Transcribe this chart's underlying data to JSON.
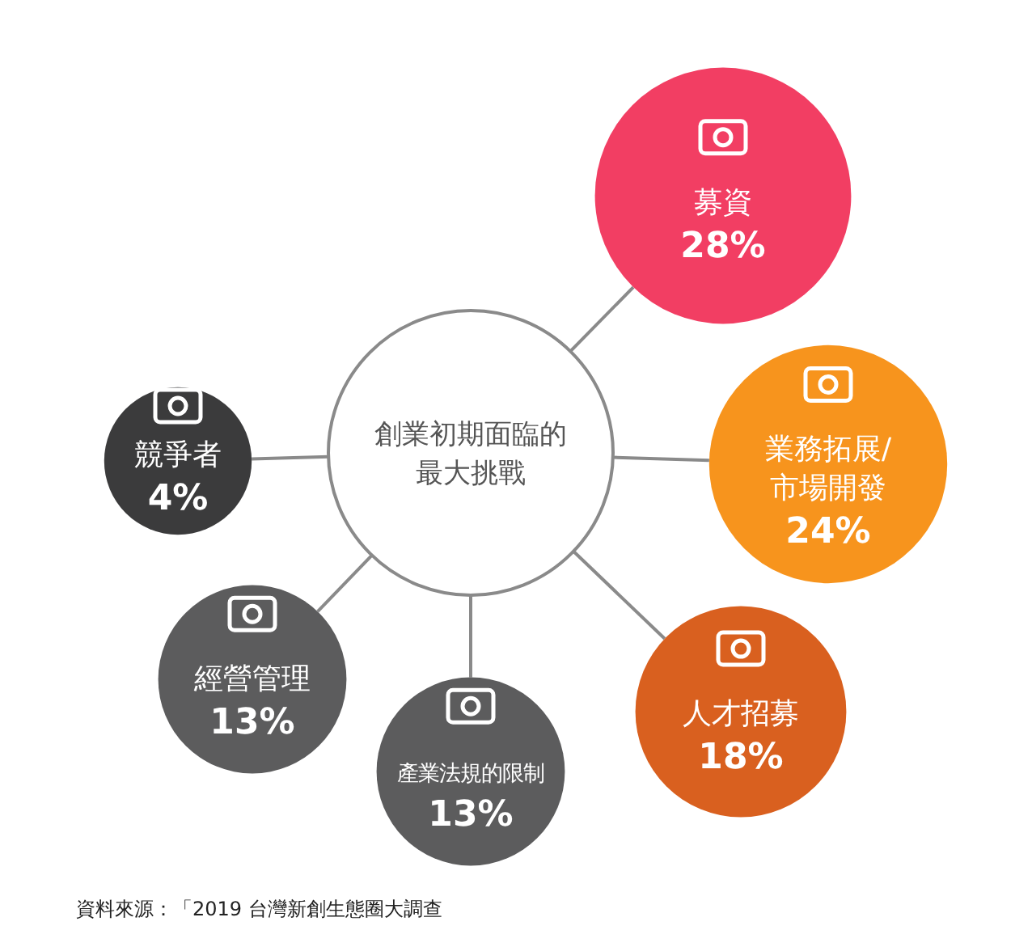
{
  "chart_data": {
    "type": "other",
    "title": "創業初期面臨的最大挑戰",
    "categories": [
      "募資",
      "業務拓展/市場開發",
      "人才招募",
      "產業法規的限制",
      "經營管理",
      "競爭者"
    ],
    "values": [
      28,
      24,
      18,
      13,
      13,
      4
    ],
    "value_labels": [
      "28%",
      "24%",
      "18%",
      "13%",
      "13%",
      "4%"
    ],
    "colors": [
      "#f23e63",
      "#f7941d",
      "#d9601f",
      "#5c5c5d",
      "#5c5c5d",
      "#3b3b3c"
    ],
    "annotations": [
      "資料來源：「2019 台灣新創生態圈大調查"
    ]
  }
}
